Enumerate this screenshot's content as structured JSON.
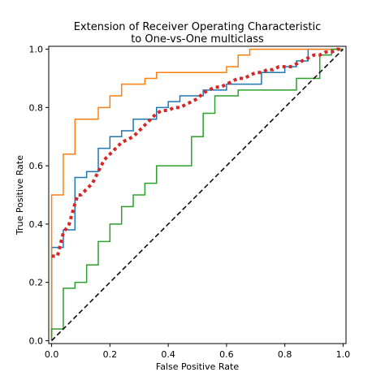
{
  "chart_data": {
    "type": "line",
    "title_line1": "Extension of Receiver Operating Characteristic",
    "title_line2": "to One-vs-One multiclass",
    "xlabel": "False Positive Rate",
    "ylabel": "True Positive Rate",
    "xlim": [
      -0.01,
      1.01
    ],
    "ylim": [
      -0.01,
      1.01
    ],
    "x_ticks": [
      0.0,
      0.2,
      0.4,
      0.6,
      0.8,
      1.0
    ],
    "y_ticks": [
      0.0,
      0.2,
      0.4,
      0.6,
      0.8,
      1.0
    ],
    "x_tick_labels": [
      "0.0",
      "0.2",
      "0.4",
      "0.6",
      "0.8",
      "1.0"
    ],
    "y_tick_labels": [
      "0.0",
      "0.2",
      "0.4",
      "0.6",
      "0.8",
      "1.0"
    ],
    "grid": false,
    "series": [
      {
        "color": "#1f77b4",
        "style": "steps",
        "x": [
          0.0,
          0.0,
          0.04,
          0.04,
          0.08,
          0.08,
          0.12,
          0.12,
          0.16,
          0.16,
          0.2,
          0.2,
          0.24,
          0.24,
          0.28,
          0.28,
          0.36,
          0.36,
          0.4,
          0.4,
          0.44,
          0.44,
          0.52,
          0.52,
          0.6,
          0.6,
          0.72,
          0.72,
          0.8,
          0.8,
          0.84,
          0.84,
          0.88,
          0.88,
          1.0
        ],
        "y": [
          0.0,
          0.32,
          0.32,
          0.38,
          0.38,
          0.56,
          0.56,
          0.58,
          0.58,
          0.66,
          0.66,
          0.7,
          0.7,
          0.72,
          0.72,
          0.76,
          0.76,
          0.8,
          0.8,
          0.82,
          0.82,
          0.84,
          0.84,
          0.86,
          0.86,
          0.88,
          0.88,
          0.92,
          0.92,
          0.94,
          0.94,
          0.96,
          0.96,
          1.0,
          1.0
        ]
      },
      {
        "color": "#ff7f0e",
        "style": "steps",
        "x": [
          0.0,
          0.0,
          0.04,
          0.04,
          0.08,
          0.08,
          0.16,
          0.16,
          0.2,
          0.2,
          0.24,
          0.24,
          0.32,
          0.32,
          0.36,
          0.36,
          0.6,
          0.6,
          0.64,
          0.64,
          0.68,
          0.68,
          0.96,
          0.96,
          1.0
        ],
        "y": [
          0.0,
          0.5,
          0.5,
          0.64,
          0.64,
          0.76,
          0.76,
          0.8,
          0.8,
          0.84,
          0.84,
          0.88,
          0.88,
          0.9,
          0.9,
          0.92,
          0.92,
          0.94,
          0.94,
          0.98,
          0.98,
          1.0,
          1.0,
          1.0,
          1.0
        ]
      },
      {
        "color": "#2ca02c",
        "style": "steps",
        "x": [
          0.0,
          0.0,
          0.04,
          0.04,
          0.08,
          0.08,
          0.12,
          0.12,
          0.16,
          0.16,
          0.2,
          0.2,
          0.24,
          0.24,
          0.28,
          0.28,
          0.32,
          0.32,
          0.36,
          0.36,
          0.48,
          0.48,
          0.52,
          0.52,
          0.56,
          0.56,
          0.64,
          0.64,
          0.84,
          0.84,
          0.92,
          0.92,
          0.96,
          0.96,
          1.0
        ],
        "y": [
          0.0,
          0.04,
          0.04,
          0.18,
          0.18,
          0.2,
          0.2,
          0.26,
          0.26,
          0.34,
          0.34,
          0.4,
          0.4,
          0.46,
          0.46,
          0.5,
          0.5,
          0.54,
          0.54,
          0.6,
          0.6,
          0.7,
          0.7,
          0.78,
          0.78,
          0.84,
          0.84,
          0.86,
          0.86,
          0.9,
          0.9,
          0.98,
          0.98,
          1.0,
          1.0
        ]
      },
      {
        "color": "#d62728",
        "style": "dotted",
        "x": [
          0.0,
          0.02,
          0.04,
          0.06,
          0.08,
          0.09,
          0.1,
          0.12,
          0.14,
          0.16,
          0.18,
          0.2,
          0.22,
          0.24,
          0.26,
          0.28,
          0.3,
          0.32,
          0.34,
          0.36,
          0.38,
          0.4,
          0.42,
          0.44,
          0.46,
          0.48,
          0.5,
          0.52,
          0.54,
          0.56,
          0.58,
          0.6,
          0.62,
          0.64,
          0.66,
          0.68,
          0.7,
          0.72,
          0.74,
          0.76,
          0.78,
          0.8,
          0.82,
          0.84,
          0.86,
          0.88,
          0.9,
          0.92,
          0.94,
          0.96,
          0.98,
          1.0
        ],
        "y": [
          0.29,
          0.29,
          0.37,
          0.4,
          0.47,
          0.5,
          0.5,
          0.52,
          0.54,
          0.58,
          0.62,
          0.64,
          0.66,
          0.68,
          0.69,
          0.7,
          0.72,
          0.74,
          0.76,
          0.78,
          0.79,
          0.79,
          0.8,
          0.8,
          0.81,
          0.82,
          0.83,
          0.85,
          0.86,
          0.87,
          0.87,
          0.88,
          0.89,
          0.9,
          0.9,
          0.91,
          0.92,
          0.92,
          0.93,
          0.93,
          0.94,
          0.94,
          0.94,
          0.95,
          0.96,
          0.97,
          0.98,
          0.98,
          0.99,
          0.99,
          1.0,
          1.0
        ]
      },
      {
        "color": "#000000",
        "style": "dashed",
        "x": [
          0.0,
          1.0
        ],
        "y": [
          0.0,
          1.0
        ]
      }
    ]
  }
}
